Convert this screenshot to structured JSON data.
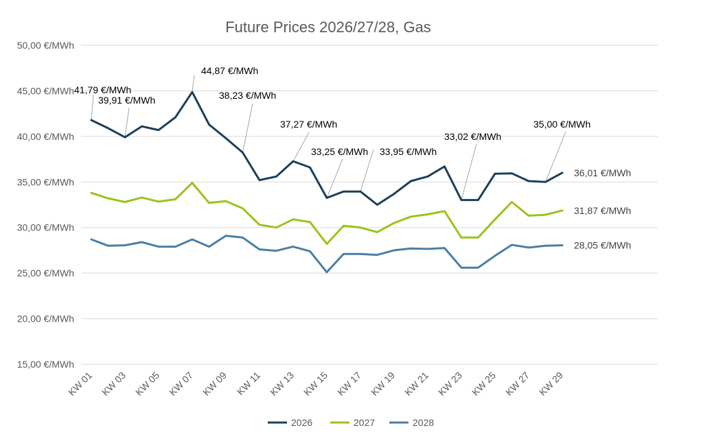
{
  "chart_data": {
    "type": "line",
    "title": "Future Prices 2026/27/28, Gas",
    "xlabel": "",
    "ylabel": "",
    "ylim": [
      15,
      50
    ],
    "y_ticks": [
      "15,00 €/MWh",
      "20,00 €/MWh",
      "25,00 €/MWh",
      "30,00 €/MWh",
      "35,00 €/MWh",
      "40,00 €/MWh",
      "45,00 €/MWh",
      "50,00 €/MWh"
    ],
    "y_tick_values": [
      15,
      20,
      25,
      30,
      35,
      40,
      45,
      50
    ],
    "grid": true,
    "legend": "bottom",
    "categories": [
      "KW 01",
      "KW 02",
      "KW 03",
      "KW 04",
      "KW 05",
      "KW 06",
      "KW 07",
      "KW 08",
      "KW 09",
      "KW 10",
      "KW 11",
      "KW 12",
      "KW 13",
      "KW 14",
      "KW 15",
      "KW 16",
      "KW 17",
      "KW 18",
      "KW 19",
      "KW 20",
      "KW 21",
      "KW 22",
      "KW 23",
      "KW 24",
      "KW 25",
      "KW 26",
      "KW 27",
      "KW 28",
      "KW 29"
    ],
    "x_tick_labels": [
      "KW 01",
      "",
      "KW 03",
      "",
      "KW 05",
      "",
      "KW 07",
      "",
      "KW 09",
      "",
      "KW 11",
      "",
      "KW 13",
      "",
      "KW 15",
      "",
      "KW 17",
      "",
      "KW 19",
      "",
      "KW 21",
      "",
      "KW 23",
      "",
      "KW 25",
      "",
      "KW 27",
      "",
      "KW 29"
    ],
    "series": [
      {
        "name": "2026",
        "color": "#1b3f5c",
        "values": [
          41.79,
          40.9,
          39.91,
          41.1,
          40.7,
          42.1,
          44.87,
          41.3,
          39.8,
          38.23,
          35.2,
          35.6,
          37.27,
          36.6,
          33.25,
          33.95,
          33.95,
          32.5,
          33.7,
          35.1,
          35.6,
          36.7,
          33.02,
          33.02,
          35.9,
          35.95,
          35.1,
          35.0,
          36.01
        ],
        "data_labels": [
          {
            "index": 0,
            "text": "41,79 €/MWh"
          },
          {
            "index": 2,
            "text": "39,91 €/MWh"
          },
          {
            "index": 6,
            "text": "44,87 €/MWh"
          },
          {
            "index": 9,
            "text": "38,23 €/MWh"
          },
          {
            "index": 12,
            "text": "37,27 €/MWh"
          },
          {
            "index": 14,
            "text": "33,25 €/MWh"
          },
          {
            "index": 16,
            "text": "33,95 €/MWh"
          },
          {
            "index": 22,
            "text": "33,02 €/MWh"
          },
          {
            "index": 27,
            "text": "35,00 €/MWh"
          }
        ],
        "end_label": "36,01 €/MWh"
      },
      {
        "name": "2027",
        "color": "#9bc31c",
        "values": [
          33.8,
          33.2,
          32.8,
          33.3,
          32.85,
          33.1,
          34.9,
          32.7,
          32.9,
          32.1,
          30.3,
          30.0,
          30.9,
          30.6,
          28.2,
          30.2,
          30.0,
          29.5,
          30.5,
          31.2,
          31.45,
          31.8,
          28.9,
          28.9,
          30.9,
          32.8,
          31.3,
          31.4,
          31.87
        ],
        "end_label": "31,87 €/MWh"
      },
      {
        "name": "2028",
        "color": "#4a7fa5",
        "values": [
          28.7,
          28.0,
          28.05,
          28.4,
          27.9,
          27.9,
          28.7,
          27.9,
          29.1,
          28.9,
          27.6,
          27.45,
          27.9,
          27.4,
          25.1,
          27.1,
          27.1,
          27.0,
          27.5,
          27.7,
          27.65,
          27.75,
          25.6,
          25.6,
          26.9,
          28.1,
          27.8,
          28.0,
          28.05
        ],
        "end_label": "28,05 €/MWh"
      }
    ]
  }
}
